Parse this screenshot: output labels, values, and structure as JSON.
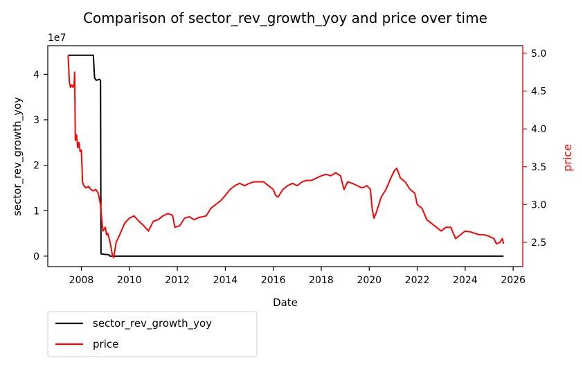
{
  "chart_data": {
    "type": "line",
    "title": "Comparison of sector_rev_growth_yoy and price over time",
    "xlabel": "Date",
    "ylabel_left": "sector_rev_growth_yoy",
    "ylabel_right": "price",
    "left_offset_label": "1e7",
    "xlim": [
      2006.6,
      2026.4
    ],
    "ylim_left": [
      -2.3,
      46.3
    ],
    "ylim_right": [
      2.18,
      5.1
    ],
    "x_ticks": [
      2008,
      2010,
      2012,
      2014,
      2016,
      2018,
      2020,
      2022,
      2024,
      2026
    ],
    "y_left_ticks": [
      0,
      1,
      2,
      3,
      4
    ],
    "y_right_ticks": [
      2.5,
      3.0,
      3.5,
      4.0,
      4.5,
      5.0
    ],
    "y_left_tick_labels": [
      "0",
      "1",
      "2",
      "3",
      "4"
    ],
    "y_right_tick_labels": [
      "2.5",
      "3.0",
      "3.5",
      "4.0",
      "4.5",
      "5.0"
    ],
    "x_tick_labels": [
      "2008",
      "2010",
      "2012",
      "2014",
      "2016",
      "2018",
      "2020",
      "2022",
      "2024",
      "2026"
    ],
    "legend_position": "below-left",
    "series": [
      {
        "name": "sector_rev_growth_yoy",
        "axis": "left",
        "unit_scale": "1e7",
        "color": "#000000",
        "points": [
          [
            2007.45,
            44.2
          ],
          [
            2008.5,
            44.2
          ],
          [
            2008.55,
            39.2
          ],
          [
            2008.62,
            38.7
          ],
          [
            2008.7,
            38.8
          ],
          [
            2008.75,
            38.9
          ],
          [
            2008.8,
            38.7
          ],
          [
            2008.82,
            0.5
          ],
          [
            2008.95,
            0.4
          ],
          [
            2009.15,
            0.3
          ],
          [
            2009.2,
            0.0
          ],
          [
            2025.6,
            0.0
          ]
        ]
      },
      {
        "name": "price",
        "axis": "right",
        "color": "#ff0000",
        "points": [
          [
            2007.45,
            4.97
          ],
          [
            2007.5,
            4.62
          ],
          [
            2007.55,
            4.55
          ],
          [
            2007.6,
            4.58
          ],
          [
            2007.65,
            4.55
          ],
          [
            2007.7,
            4.6
          ],
          [
            2007.72,
            4.75
          ],
          [
            2007.75,
            3.85
          ],
          [
            2007.8,
            3.92
          ],
          [
            2007.85,
            3.75
          ],
          [
            2007.9,
            3.82
          ],
          [
            2007.95,
            3.7
          ],
          [
            2008.0,
            3.72
          ],
          [
            2008.05,
            3.3
          ],
          [
            2008.1,
            3.25
          ],
          [
            2008.2,
            3.22
          ],
          [
            2008.3,
            3.24
          ],
          [
            2008.4,
            3.2
          ],
          [
            2008.5,
            3.18
          ],
          [
            2008.6,
            3.2
          ],
          [
            2008.7,
            3.15
          ],
          [
            2008.8,
            3.0
          ],
          [
            2008.85,
            2.8
          ],
          [
            2008.9,
            2.65
          ],
          [
            2009.0,
            2.7
          ],
          [
            2009.05,
            2.6
          ],
          [
            2009.1,
            2.62
          ],
          [
            2009.2,
            2.5
          ],
          [
            2009.3,
            2.32
          ],
          [
            2009.35,
            2.3
          ],
          [
            2009.45,
            2.5
          ],
          [
            2009.6,
            2.6
          ],
          [
            2009.8,
            2.75
          ],
          [
            2010.0,
            2.82
          ],
          [
            2010.2,
            2.85
          ],
          [
            2010.4,
            2.78
          ],
          [
            2010.6,
            2.72
          ],
          [
            2010.8,
            2.65
          ],
          [
            2011.0,
            2.78
          ],
          [
            2011.2,
            2.8
          ],
          [
            2011.4,
            2.85
          ],
          [
            2011.6,
            2.88
          ],
          [
            2011.8,
            2.86
          ],
          [
            2011.9,
            2.7
          ],
          [
            2012.1,
            2.72
          ],
          [
            2012.3,
            2.82
          ],
          [
            2012.5,
            2.84
          ],
          [
            2012.7,
            2.8
          ],
          [
            2012.9,
            2.83
          ],
          [
            2013.2,
            2.85
          ],
          [
            2013.4,
            2.95
          ],
          [
            2013.6,
            3.0
          ],
          [
            2013.8,
            3.05
          ],
          [
            2014.0,
            3.12
          ],
          [
            2014.2,
            3.2
          ],
          [
            2014.4,
            3.25
          ],
          [
            2014.6,
            3.28
          ],
          [
            2014.8,
            3.25
          ],
          [
            2015.0,
            3.28
          ],
          [
            2015.2,
            3.3
          ],
          [
            2015.4,
            3.3
          ],
          [
            2015.6,
            3.3
          ],
          [
            2015.8,
            3.25
          ],
          [
            2016.0,
            3.2
          ],
          [
            2016.1,
            3.12
          ],
          [
            2016.2,
            3.1
          ],
          [
            2016.4,
            3.2
          ],
          [
            2016.6,
            3.25
          ],
          [
            2016.8,
            3.28
          ],
          [
            2017.0,
            3.25
          ],
          [
            2017.2,
            3.3
          ],
          [
            2017.4,
            3.32
          ],
          [
            2017.6,
            3.32
          ],
          [
            2017.8,
            3.35
          ],
          [
            2018.0,
            3.38
          ],
          [
            2018.2,
            3.4
          ],
          [
            2018.4,
            3.38
          ],
          [
            2018.6,
            3.42
          ],
          [
            2018.8,
            3.38
          ],
          [
            2018.95,
            3.2
          ],
          [
            2019.1,
            3.3
          ],
          [
            2019.3,
            3.28
          ],
          [
            2019.5,
            3.25
          ],
          [
            2019.7,
            3.22
          ],
          [
            2019.9,
            3.25
          ],
          [
            2020.05,
            3.2
          ],
          [
            2020.12,
            2.95
          ],
          [
            2020.2,
            2.82
          ],
          [
            2020.3,
            2.9
          ],
          [
            2020.5,
            3.1
          ],
          [
            2020.7,
            3.2
          ],
          [
            2020.9,
            3.35
          ],
          [
            2021.05,
            3.45
          ],
          [
            2021.15,
            3.48
          ],
          [
            2021.3,
            3.35
          ],
          [
            2021.5,
            3.3
          ],
          [
            2021.7,
            3.2
          ],
          [
            2021.9,
            3.15
          ],
          [
            2022.0,
            3.0
          ],
          [
            2022.2,
            2.95
          ],
          [
            2022.4,
            2.8
          ],
          [
            2022.6,
            2.75
          ],
          [
            2022.8,
            2.7
          ],
          [
            2023.0,
            2.65
          ],
          [
            2023.2,
            2.7
          ],
          [
            2023.4,
            2.7
          ],
          [
            2023.6,
            2.55
          ],
          [
            2023.8,
            2.6
          ],
          [
            2024.0,
            2.65
          ],
          [
            2024.2,
            2.64
          ],
          [
            2024.4,
            2.62
          ],
          [
            2024.6,
            2.6
          ],
          [
            2024.8,
            2.6
          ],
          [
            2025.0,
            2.58
          ],
          [
            2025.2,
            2.55
          ],
          [
            2025.3,
            2.48
          ],
          [
            2025.45,
            2.5
          ],
          [
            2025.55,
            2.55
          ],
          [
            2025.6,
            2.48
          ]
        ]
      }
    ]
  },
  "colors": {
    "left_axis": "#000000",
    "right_axis": "#ff0000"
  }
}
